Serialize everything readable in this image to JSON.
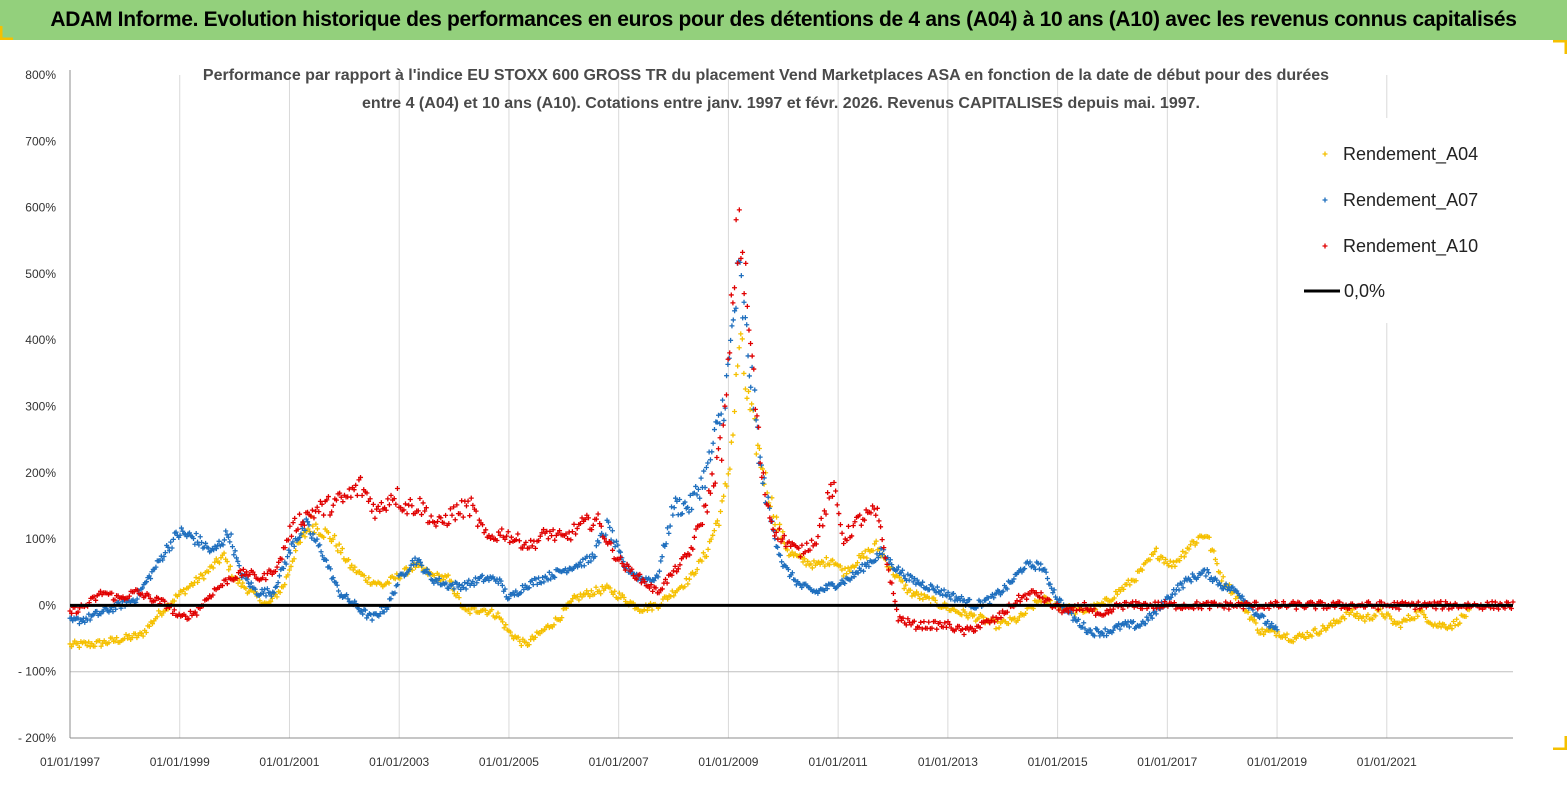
{
  "banner": {
    "title": "ADAM Informe. Evolution historique des performances en euros pour des détentions de 4 ans (A04) à 10 ans (A10) avec les revenus connus capitalisés",
    "color": "#93d07c"
  },
  "chart_data": {
    "type": "scatter",
    "title_line1": "Performance par rapport à l'indice EU STOXX 600 GROSS TR  du placement Vend Marketplaces ASA en fonction de la date de début pour des durées",
    "title_line2": "entre 4 (A04) et 10 ans (A10). Cotations entre janv. 1997 et févr. 2026. Revenus CAPITALISES depuis mai. 1997.",
    "xlabel": "",
    "ylabel": "",
    "x_range": [
      1997.0,
      2023.3
    ],
    "ylim": [
      -200,
      800
    ],
    "y_ticks": [
      "800%",
      "700%",
      "600%",
      "500%",
      "400%",
      "300%",
      "200%",
      "100%",
      "0%",
      "- 100%",
      "- 200%"
    ],
    "y_tick_values": [
      800,
      700,
      600,
      500,
      400,
      300,
      200,
      100,
      0,
      -100,
      -200
    ],
    "x_ticks": [
      "01/01/1997",
      "01/01/1999",
      "01/01/2001",
      "01/01/2003",
      "01/01/2005",
      "01/01/2007",
      "01/01/2009",
      "01/01/2011",
      "01/01/2013",
      "01/01/2015",
      "01/01/2017",
      "01/01/2019",
      "01/01/2021"
    ],
    "x_tick_values": [
      1997,
      1999,
      2001,
      2003,
      2005,
      2007,
      2009,
      2011,
      2013,
      2015,
      2017,
      2019,
      2021
    ],
    "grid": "vertical",
    "legend_position": "top-right",
    "series": [
      {
        "name": "Rendement_A04",
        "color": "#f5c000",
        "marker": "+",
        "x_end": 2022.5,
        "points": [
          [
            1997.0,
            -60
          ],
          [
            1997.5,
            -58
          ],
          [
            1998.0,
            -50
          ],
          [
            1998.3,
            -45
          ],
          [
            1998.6,
            -15
          ],
          [
            1998.9,
            10
          ],
          [
            1999.2,
            30
          ],
          [
            1999.5,
            50
          ],
          [
            1999.8,
            75
          ],
          [
            2000.0,
            40
          ],
          [
            2000.3,
            20
          ],
          [
            2000.6,
            0
          ],
          [
            2000.9,
            30
          ],
          [
            2001.1,
            80
          ],
          [
            2001.4,
            125
          ],
          [
            2001.8,
            100
          ],
          [
            2002.1,
            60
          ],
          [
            2002.4,
            40
          ],
          [
            2002.7,
            30
          ],
          [
            2003.0,
            45
          ],
          [
            2003.3,
            60
          ],
          [
            2003.6,
            45
          ],
          [
            2003.9,
            40
          ],
          [
            2004.2,
            -10
          ],
          [
            2004.5,
            -5
          ],
          [
            2004.8,
            -15
          ],
          [
            2005.0,
            -40
          ],
          [
            2005.3,
            -60
          ],
          [
            2005.6,
            -40
          ],
          [
            2005.9,
            -20
          ],
          [
            2006.2,
            10
          ],
          [
            2006.5,
            20
          ],
          [
            2006.8,
            25
          ],
          [
            2007.1,
            10
          ],
          [
            2007.4,
            -5
          ],
          [
            2007.7,
            0
          ],
          [
            2008.0,
            20
          ],
          [
            2008.3,
            40
          ],
          [
            2008.6,
            80
          ],
          [
            2008.9,
            150
          ],
          [
            2009.0,
            200
          ],
          [
            2009.1,
            280
          ],
          [
            2009.2,
            400
          ],
          [
            2009.35,
            310
          ],
          [
            2009.5,
            250
          ],
          [
            2009.7,
            180
          ],
          [
            2009.9,
            120
          ],
          [
            2010.1,
            80
          ],
          [
            2010.3,
            70
          ],
          [
            2010.6,
            60
          ],
          [
            2010.9,
            70
          ],
          [
            2011.1,
            50
          ],
          [
            2011.4,
            70
          ],
          [
            2011.7,
            90
          ],
          [
            2012.0,
            50
          ],
          [
            2012.3,
            20
          ],
          [
            2012.6,
            10
          ],
          [
            2012.9,
            0
          ],
          [
            2013.2,
            -10
          ],
          [
            2013.6,
            -20
          ],
          [
            2013.9,
            -30
          ],
          [
            2014.3,
            -20
          ],
          [
            2014.7,
            10
          ],
          [
            2015.0,
            0
          ],
          [
            2015.4,
            -10
          ],
          [
            2015.8,
            0
          ],
          [
            2016.1,
            20
          ],
          [
            2016.4,
            40
          ],
          [
            2016.8,
            80
          ],
          [
            2017.1,
            60
          ],
          [
            2017.4,
            90
          ],
          [
            2017.7,
            110
          ],
          [
            2018.0,
            40
          ],
          [
            2018.3,
            10
          ],
          [
            2018.7,
            -40
          ],
          [
            2019.0,
            -40
          ],
          [
            2019.3,
            -50
          ],
          [
            2019.7,
            -40
          ],
          [
            2020.0,
            -30
          ],
          [
            2020.3,
            -10
          ],
          [
            2020.6,
            -20
          ],
          [
            2020.9,
            -10
          ],
          [
            2021.2,
            -30
          ],
          [
            2021.6,
            -10
          ],
          [
            2021.9,
            -30
          ],
          [
            2022.2,
            -30
          ],
          [
            2022.5,
            -10
          ]
        ]
      },
      {
        "name": "Rendement_A07",
        "color": "#1f6fbe",
        "marker": "+",
        "x_end": 2019.0,
        "points": [
          [
            1997.0,
            -25
          ],
          [
            1997.3,
            -20
          ],
          [
            1997.6,
            -10
          ],
          [
            1997.9,
            0
          ],
          [
            1998.2,
            10
          ],
          [
            1998.5,
            50
          ],
          [
            1998.8,
            90
          ],
          [
            1999.0,
            110
          ],
          [
            1999.3,
            100
          ],
          [
            1999.6,
            80
          ],
          [
            1999.9,
            110
          ],
          [
            2000.1,
            50
          ],
          [
            2000.4,
            20
          ],
          [
            2000.7,
            20
          ],
          [
            2000.9,
            60
          ],
          [
            2001.1,
            100
          ],
          [
            2001.3,
            120
          ],
          [
            2001.6,
            80
          ],
          [
            2001.9,
            20
          ],
          [
            2002.2,
            0
          ],
          [
            2002.5,
            -20
          ],
          [
            2002.8,
            0
          ],
          [
            2003.0,
            40
          ],
          [
            2003.3,
            70
          ],
          [
            2003.6,
            40
          ],
          [
            2003.9,
            30
          ],
          [
            2004.2,
            30
          ],
          [
            2004.5,
            40
          ],
          [
            2004.8,
            40
          ],
          [
            2005.0,
            10
          ],
          [
            2005.3,
            30
          ],
          [
            2005.6,
            40
          ],
          [
            2005.9,
            50
          ],
          [
            2006.2,
            60
          ],
          [
            2006.5,
            70
          ],
          [
            2006.8,
            120
          ],
          [
            2007.1,
            60
          ],
          [
            2007.4,
            40
          ],
          [
            2007.7,
            40
          ],
          [
            2008.0,
            150
          ],
          [
            2008.3,
            150
          ],
          [
            2008.6,
            200
          ],
          [
            2008.9,
            300
          ],
          [
            2009.0,
            350
          ],
          [
            2009.1,
            440
          ],
          [
            2009.2,
            500
          ],
          [
            2009.3,
            420
          ],
          [
            2009.45,
            320
          ],
          [
            2009.6,
            200
          ],
          [
            2009.8,
            120
          ],
          [
            2010.0,
            60
          ],
          [
            2010.3,
            30
          ],
          [
            2010.6,
            20
          ],
          [
            2010.9,
            30
          ],
          [
            2011.2,
            40
          ],
          [
            2011.5,
            60
          ],
          [
            2011.8,
            80
          ],
          [
            2012.0,
            60
          ],
          [
            2012.3,
            40
          ],
          [
            2012.6,
            30
          ],
          [
            2012.9,
            20
          ],
          [
            2013.2,
            10
          ],
          [
            2013.5,
            0
          ],
          [
            2013.8,
            10
          ],
          [
            2014.1,
            30
          ],
          [
            2014.4,
            60
          ],
          [
            2014.7,
            60
          ],
          [
            2015.0,
            10
          ],
          [
            2015.3,
            -20
          ],
          [
            2015.6,
            -40
          ],
          [
            2015.9,
            -40
          ],
          [
            2016.2,
            -30
          ],
          [
            2016.5,
            -30
          ],
          [
            2016.8,
            -10
          ],
          [
            2017.1,
            20
          ],
          [
            2017.4,
            40
          ],
          [
            2017.7,
            50
          ],
          [
            2018.0,
            30
          ],
          [
            2018.3,
            20
          ],
          [
            2018.6,
            -10
          ],
          [
            2019.0,
            -40
          ]
        ]
      },
      {
        "name": "Rendement_A10",
        "color": "#e00000",
        "marker": "+",
        "x_end": 2023.3,
        "points": [
          [
            1997.0,
            -10
          ],
          [
            1997.3,
            0
          ],
          [
            1997.6,
            20
          ],
          [
            1997.9,
            10
          ],
          [
            1998.2,
            20
          ],
          [
            1998.5,
            10
          ],
          [
            1998.8,
            0
          ],
          [
            1999.0,
            -20
          ],
          [
            1999.3,
            -10
          ],
          [
            1999.6,
            20
          ],
          [
            1999.9,
            40
          ],
          [
            2000.2,
            50
          ],
          [
            2000.5,
            40
          ],
          [
            2000.8,
            60
          ],
          [
            2001.0,
            110
          ],
          [
            2001.2,
            130
          ],
          [
            2001.4,
            140
          ],
          [
            2001.7,
            150
          ],
          [
            2002.0,
            160
          ],
          [
            2002.3,
            180
          ],
          [
            2002.6,
            140
          ],
          [
            2002.9,
            170
          ],
          [
            2003.1,
            150
          ],
          [
            2003.4,
            150
          ],
          [
            2003.7,
            120
          ],
          [
            2004.0,
            140
          ],
          [
            2004.3,
            150
          ],
          [
            2004.6,
            100
          ],
          [
            2004.9,
            110
          ],
          [
            2005.1,
            100
          ],
          [
            2005.4,
            90
          ],
          [
            2005.7,
            110
          ],
          [
            2006.0,
            100
          ],
          [
            2006.3,
            120
          ],
          [
            2006.6,
            130
          ],
          [
            2006.9,
            80
          ],
          [
            2007.1,
            60
          ],
          [
            2007.4,
            40
          ],
          [
            2007.7,
            20
          ],
          [
            2008.0,
            50
          ],
          [
            2008.3,
            80
          ],
          [
            2008.6,
            150
          ],
          [
            2008.9,
            250
          ],
          [
            2009.0,
            350
          ],
          [
            2009.1,
            500
          ],
          [
            2009.2,
            580
          ],
          [
            2009.3,
            490
          ],
          [
            2009.45,
            350
          ],
          [
            2009.6,
            200
          ],
          [
            2009.8,
            120
          ],
          [
            2010.0,
            100
          ],
          [
            2010.3,
            80
          ],
          [
            2010.6,
            100
          ],
          [
            2010.9,
            180
          ],
          [
            2011.1,
            100
          ],
          [
            2011.4,
            130
          ],
          [
            2011.7,
            140
          ],
          [
            2011.9,
            60
          ],
          [
            2012.1,
            -20
          ],
          [
            2012.4,
            -30
          ],
          [
            2012.7,
            -30
          ],
          [
            2013.0,
            -30
          ],
          [
            2013.3,
            -40
          ],
          [
            2013.6,
            -30
          ],
          [
            2013.9,
            -20
          ],
          [
            2014.3,
            10
          ],
          [
            2014.6,
            20
          ],
          [
            2014.9,
            0
          ],
          [
            2015.2,
            -10
          ],
          [
            2015.5,
            0
          ],
          [
            2015.8,
            -20
          ],
          [
            2016.1,
            0
          ],
          [
            2017.0,
            0
          ],
          [
            2018.0,
            0
          ],
          [
            2019.0,
            0
          ],
          [
            2020.0,
            0
          ],
          [
            2021.0,
            0
          ],
          [
            2022.0,
            0
          ],
          [
            2023.3,
            0
          ]
        ]
      },
      {
        "name": "0,0%",
        "color": "#000000",
        "type": "line",
        "y": 0
      }
    ]
  }
}
